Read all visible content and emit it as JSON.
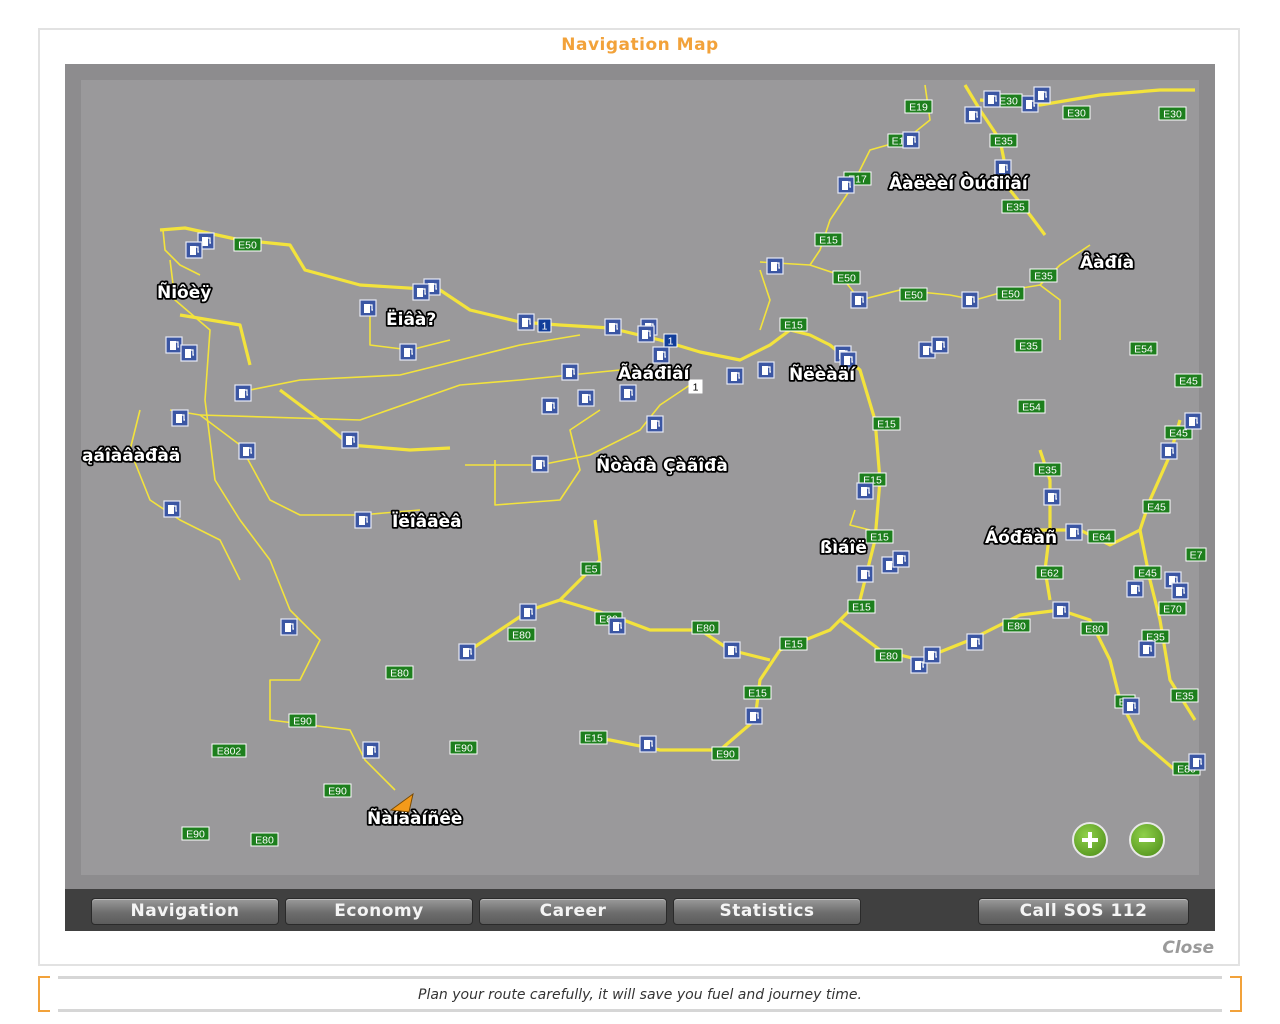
{
  "window": {
    "title": "Navigation Map",
    "close_label": "Close"
  },
  "tabs": [
    {
      "label": "Navigation"
    },
    {
      "label": "Economy"
    },
    {
      "label": "Career"
    },
    {
      "label": "Statistics"
    }
  ],
  "sos_button": {
    "label": "Call SOS 112"
  },
  "tip": "Plan your route carefully, it will save you fuel and journey time.",
  "map": {
    "zoom_in_icon": "plus-circle-icon",
    "zoom_out_icon": "minus-circle-icon",
    "player_marker_icon": "orange-arrow-icon",
    "fuel_icon": "fuel-pump-icon",
    "colors": {
      "background": "#9a999b",
      "road": "#f3e33c",
      "e_shield": "#1d7f1d",
      "national_shield": "#123e9a",
      "player": "#f39a1a",
      "city_label": "#ffffff"
    },
    "cities": [
      {
        "name": "Ñiôèÿ"
      },
      {
        "name": "Ëiâà?"
      },
      {
        "name": "Ãàáđiâí"
      },
      {
        "name": "Ñëèàäí"
      },
      {
        "name": "Âàëèèí Òúđiîâí"
      },
      {
        "name": "Âàđíà"
      },
      {
        "name": "ąáîàâàđàä"
      },
      {
        "name": "Ñòàđà Çàãîđà"
      },
      {
        "name": "Ïëîâäèâ"
      },
      {
        "name": "ßìáîë"
      },
      {
        "name": "Áóđãàñ"
      },
      {
        "name": "Ñàíäàíñêè"
      }
    ],
    "road_labels": [
      {
        "text": "E19",
        "type": "e"
      },
      {
        "text": "E30",
        "type": "e"
      },
      {
        "text": "E30",
        "type": "e"
      },
      {
        "text": "E30",
        "type": "e"
      },
      {
        "text": "E1",
        "type": "e"
      },
      {
        "text": "E35",
        "type": "e"
      },
      {
        "text": "E17",
        "type": "e"
      },
      {
        "text": "E35",
        "type": "e"
      },
      {
        "text": "E50",
        "type": "e"
      },
      {
        "text": "E15",
        "type": "e"
      },
      {
        "text": "E50",
        "type": "e"
      },
      {
        "text": "E50",
        "type": "e"
      },
      {
        "text": "E50",
        "type": "e"
      },
      {
        "text": "E35",
        "type": "e"
      },
      {
        "text": "1",
        "type": "n"
      },
      {
        "text": "1",
        "type": "n"
      },
      {
        "text": "1",
        "type": "w"
      },
      {
        "text": "E15",
        "type": "e"
      },
      {
        "text": "E35",
        "type": "e"
      },
      {
        "text": "E54",
        "type": "e"
      },
      {
        "text": "E45",
        "type": "e"
      },
      {
        "text": "E54",
        "type": "e"
      },
      {
        "text": "E15",
        "type": "e"
      },
      {
        "text": "E45",
        "type": "e"
      },
      {
        "text": "E35",
        "type": "e"
      },
      {
        "text": "E15",
        "type": "e"
      },
      {
        "text": "E45",
        "type": "e"
      },
      {
        "text": "E15",
        "type": "e"
      },
      {
        "text": "E64",
        "type": "e"
      },
      {
        "text": "E62",
        "type": "e"
      },
      {
        "text": "E7",
        "type": "e"
      },
      {
        "text": "E45",
        "type": "e"
      },
      {
        "text": "E5",
        "type": "e"
      },
      {
        "text": "E15",
        "type": "e"
      },
      {
        "text": "E70",
        "type": "e"
      },
      {
        "text": "E80",
        "type": "e"
      },
      {
        "text": "E80",
        "type": "e"
      },
      {
        "text": "E80",
        "type": "e"
      },
      {
        "text": "E80",
        "type": "e"
      },
      {
        "text": "E80",
        "type": "e"
      },
      {
        "text": "E15",
        "type": "e"
      },
      {
        "text": "E35",
        "type": "e"
      },
      {
        "text": "E80",
        "type": "e"
      },
      {
        "text": "E15",
        "type": "e"
      },
      {
        "text": "E35",
        "type": "e"
      },
      {
        "text": "E80",
        "type": "e"
      },
      {
        "text": "E8",
        "type": "e"
      },
      {
        "text": "E90",
        "type": "e"
      },
      {
        "text": "E15",
        "type": "e"
      },
      {
        "text": "E802",
        "type": "e"
      },
      {
        "text": "E90",
        "type": "e"
      },
      {
        "text": "E90",
        "type": "e"
      },
      {
        "text": "E90",
        "type": "e"
      },
      {
        "text": "E90",
        "type": "e"
      },
      {
        "text": "E80",
        "type": "e"
      },
      {
        "text": "E80",
        "type": "e"
      }
    ]
  }
}
